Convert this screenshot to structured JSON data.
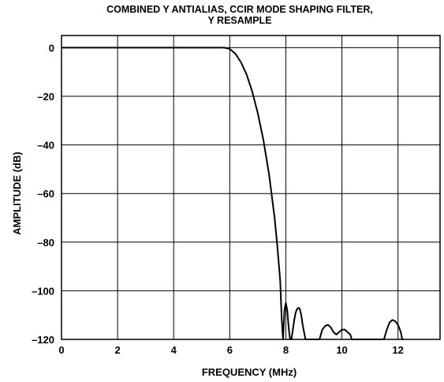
{
  "chart_data": {
    "type": "line",
    "title_lines": [
      "COMBINED Y ANTIALIAS, CCIR MODE SHAPING FILTER,",
      "Y RESAMPLE"
    ],
    "xlabel": "FREQUENCY (MHz)",
    "ylabel": "AMPLITUDE (dB)",
    "xlim": [
      0,
      13.5
    ],
    "ylim": [
      -120,
      5
    ],
    "x_ticks": [
      0,
      2,
      4,
      6,
      8,
      10,
      12
    ],
    "x_tick_labels": [
      "0",
      "2",
      "4",
      "6",
      "8",
      "10",
      "12"
    ],
    "y_ticks": [
      0,
      -20,
      -40,
      -60,
      -80,
      -100,
      -120
    ],
    "y_tick_labels": [
      "0",
      "–20",
      "–40",
      "–60",
      "–80",
      "–100",
      "–120"
    ],
    "grid": true,
    "series": [
      {
        "x": [
          0,
          1,
          2,
          3,
          4,
          5,
          5.5,
          5.8,
          6.0,
          6.2,
          6.4,
          6.6,
          6.8,
          7.0,
          7.2,
          7.4,
          7.6,
          7.7,
          7.8,
          7.85,
          7.9,
          7.95,
          8.0,
          8.05,
          8.1,
          8.15,
          8.2,
          8.25,
          8.3,
          8.35,
          8.4,
          8.45,
          8.5,
          8.55,
          8.6,
          8.7,
          8.8,
          8.9,
          9.0,
          9.2,
          9.3,
          9.4,
          9.5,
          9.6,
          9.7,
          9.8,
          9.9,
          10.0,
          10.1,
          10.2,
          10.3,
          10.35,
          10.4,
          10.5,
          11.0,
          11.5,
          11.6,
          11.7,
          11.8,
          11.9,
          12.0,
          12.1,
          12.15,
          12.2
        ],
        "y": [
          0,
          0,
          0,
          0,
          0,
          0,
          0,
          0,
          -0.5,
          -2.5,
          -6,
          -11,
          -18,
          -27,
          -38,
          -52,
          -70,
          -82,
          -96,
          -111,
          -120,
          -108,
          -105,
          -108,
          -115,
          -120,
          -120,
          -116,
          -112,
          -109,
          -107.5,
          -107,
          -107.5,
          -110,
          -114,
          -120,
          -120,
          -120,
          -120,
          -120,
          -116,
          -114.5,
          -114,
          -115,
          -117,
          -118,
          -117,
          -116,
          -116,
          -117,
          -118,
          -120,
          -120,
          -120,
          -120,
          -120,
          -116,
          -113,
          -112,
          -112.5,
          -114,
          -117,
          -120,
          -120
        ]
      }
    ]
  }
}
